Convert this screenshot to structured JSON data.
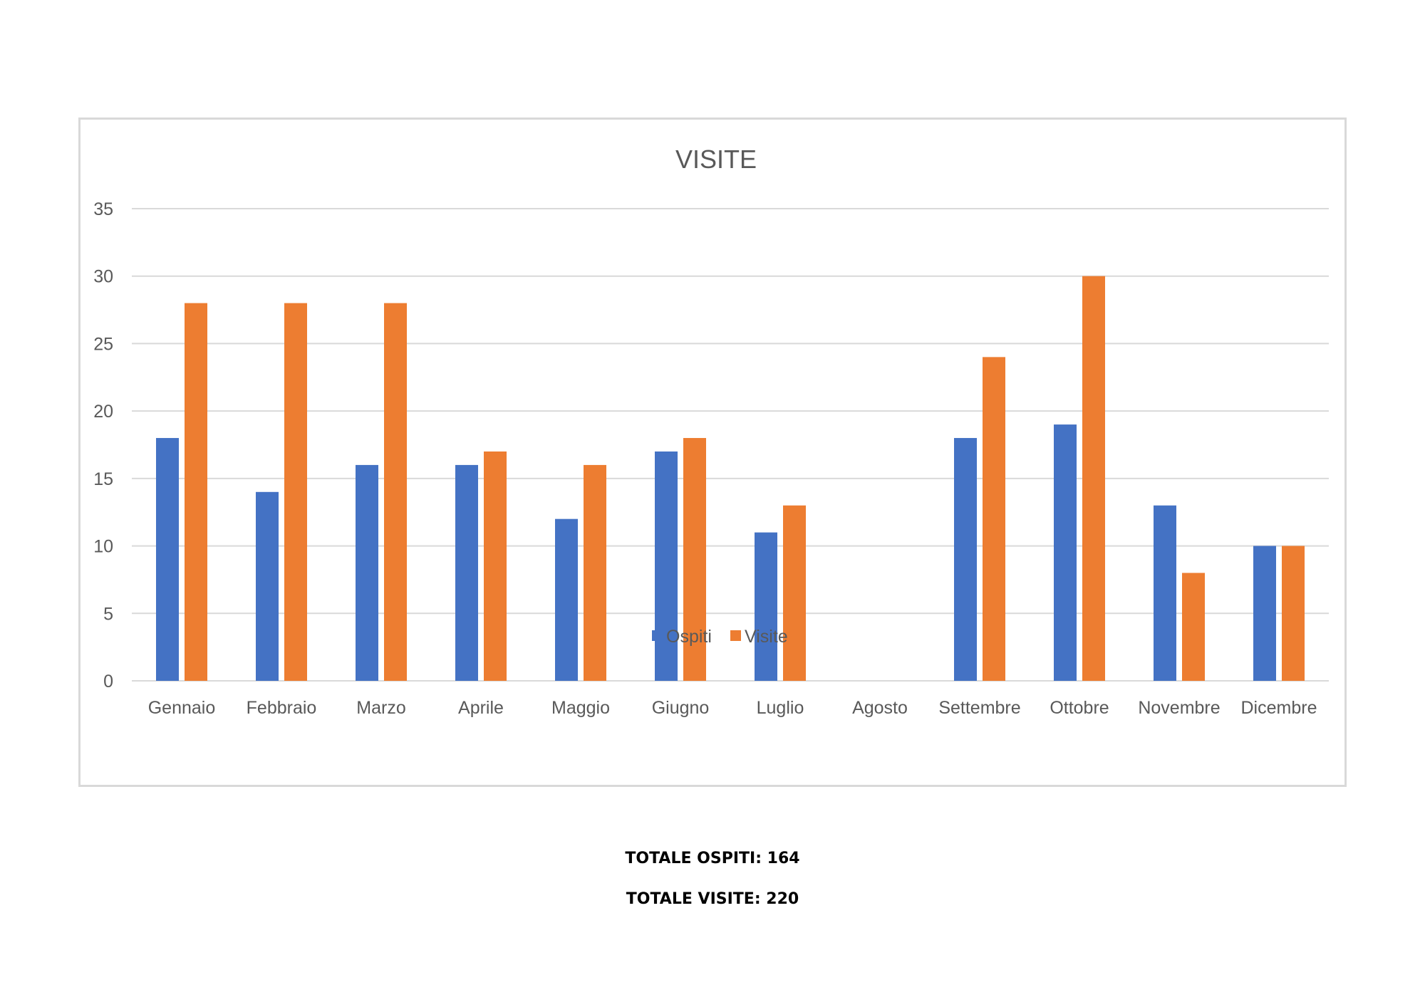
{
  "chart_data": {
    "type": "bar",
    "title": "VISITE",
    "categories": [
      "Gennaio",
      "Febbraio",
      "Marzo",
      "Aprile",
      "Maggio",
      "Giugno",
      "Luglio",
      "Agosto",
      "Settembre",
      "Ottobre",
      "Novembre",
      "Dicembre"
    ],
    "series": [
      {
        "name": "Ospiti",
        "color": "#4472c4",
        "values": [
          18,
          14,
          16,
          16,
          12,
          17,
          11,
          0,
          18,
          19,
          13,
          10
        ]
      },
      {
        "name": "Visite",
        "color": "#ed7d31",
        "values": [
          28,
          28,
          28,
          17,
          16,
          18,
          13,
          0,
          24,
          30,
          8,
          10
        ]
      }
    ],
    "ylim": [
      0,
      35
    ],
    "yticks": [
      0,
      5,
      10,
      15,
      20,
      25,
      30,
      35
    ],
    "grid": true,
    "legend": "bottom",
    "xlabel": "",
    "ylabel": ""
  },
  "totals": {
    "ospiti": "TOTALE OSPITI: 164",
    "visite": "TOTALE VISITE: 220"
  }
}
